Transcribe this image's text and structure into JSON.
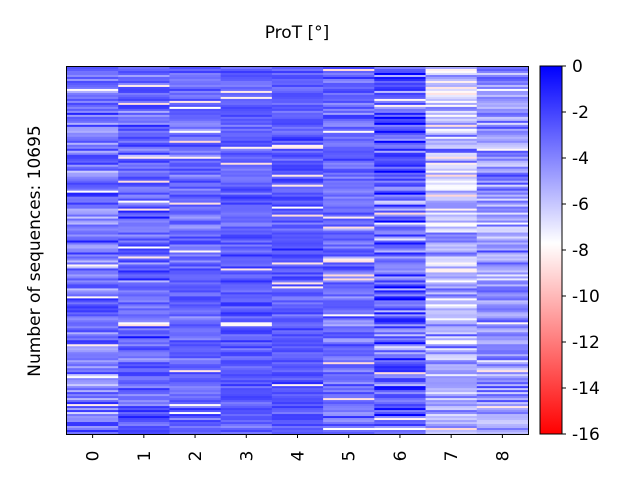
{
  "chart_data": {
    "type": "heatmap",
    "title": "ProT [°]",
    "xlabel": "",
    "ylabel": "Number of sequences: 10695",
    "x_categories": [
      "0",
      "1",
      "2",
      "3",
      "4",
      "5",
      "6",
      "7",
      "8"
    ],
    "n_sequences": 10695,
    "colorbar": {
      "min": -16,
      "max": 0,
      "ticks": [
        "0",
        "-2",
        "-4",
        "-6",
        "-8",
        "-10",
        "-12",
        "-14",
        "-16"
      ],
      "colors": {
        "high": "#0000ff",
        "mid": "#ffffff",
        "low": "#ff0000"
      },
      "mid_value": -7.7
    },
    "column_mean": [
      -3.6,
      -3.0,
      -3.2,
      -2.8,
      -2.6,
      -3.2,
      -3.0,
      -5.4,
      -4.6
    ],
    "column_spread": [
      1.6,
      1.4,
      1.1,
      1.0,
      0.9,
      1.2,
      2.4,
      2.2,
      1.8
    ]
  }
}
